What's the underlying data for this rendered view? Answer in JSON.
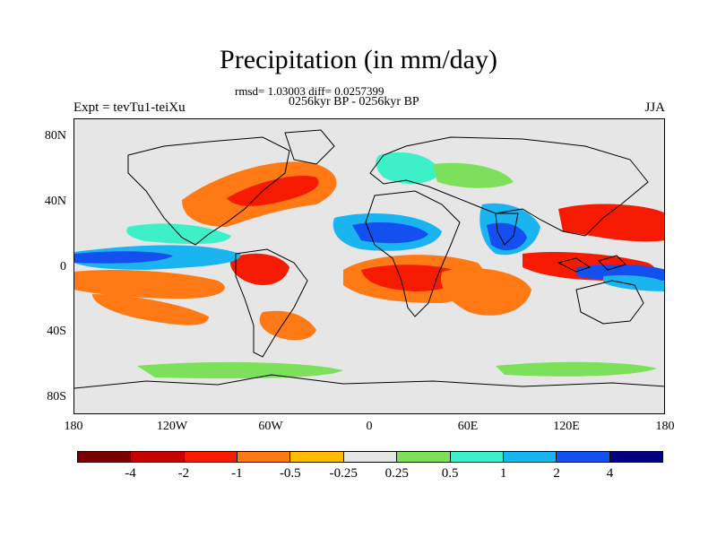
{
  "title": "Precipitation (in mm/day)",
  "stats": "rmsd= 1.03003 diff= 0.0257399",
  "periods": "0256kyr BP - 0256kyr BP",
  "experiment": "Expt = tevTu1-teiXu",
  "season": "JJA",
  "lat_labels": [
    "80N",
    "40N",
    "0",
    "40S",
    "80S"
  ],
  "lon_labels": [
    "180",
    "120W",
    "60W",
    "0",
    "60E",
    "120E",
    "180"
  ],
  "colorbar": {
    "colors": [
      "#7a0000",
      "#c80000",
      "#f51a00",
      "#ff7a14",
      "#ffbb00",
      "#e6e6e6",
      "#7de05a",
      "#3ef0c8",
      "#1ab4f0",
      "#1450f0",
      "#000080"
    ],
    "labels": [
      "-4",
      "-2",
      "-1",
      "-0.5",
      "-0.25",
      "0.25",
      "0.5",
      "1",
      "2",
      "4"
    ]
  },
  "legend_icons": {
    "coastline": "coastline-icon"
  }
}
